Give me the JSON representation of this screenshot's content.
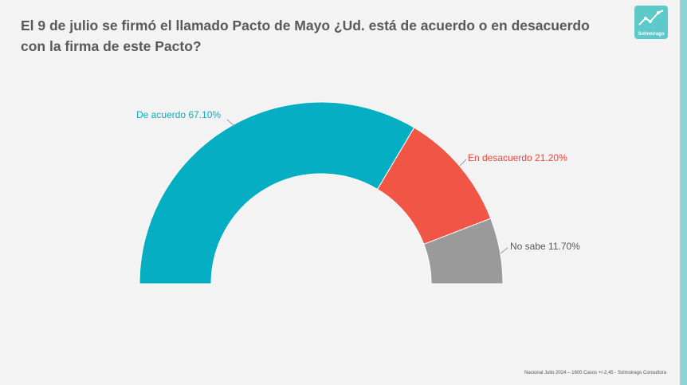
{
  "title": {
    "line1": "El 9 de julio se firmó el llamado Pacto de Mayo ¿Ud. está de acuerdo o en desacuerdo",
    "line2": "con la firma de este Pacto?"
  },
  "logo": {
    "name": "Solmoirago"
  },
  "footer": "Nacional Julio 2024 – 1600 Casos +/-2,45 - Solmoirago Consultora",
  "chart_data": {
    "type": "pie",
    "variant": "half-donut",
    "title": "El 9 de julio se firmó el llamado Pacto de Mayo ¿Ud. está de acuerdo o en desacuerdo con la firma de este Pacto?",
    "slices": [
      {
        "label": "De acuerdo",
        "value": 67.1,
        "display": "De acuerdo 67.10%",
        "color": "#05aec2",
        "label_color": "#05aec2"
      },
      {
        "label": "En desacuerdo",
        "value": 21.2,
        "display": "En desacuerdo 21.20%",
        "color": "#f05545",
        "label_color": "#e8463a"
      },
      {
        "label": "No sabe",
        "value": 11.7,
        "display": "No sabe 11.70%",
        "color": "#9a9a9a",
        "label_color": "#595959"
      }
    ]
  }
}
